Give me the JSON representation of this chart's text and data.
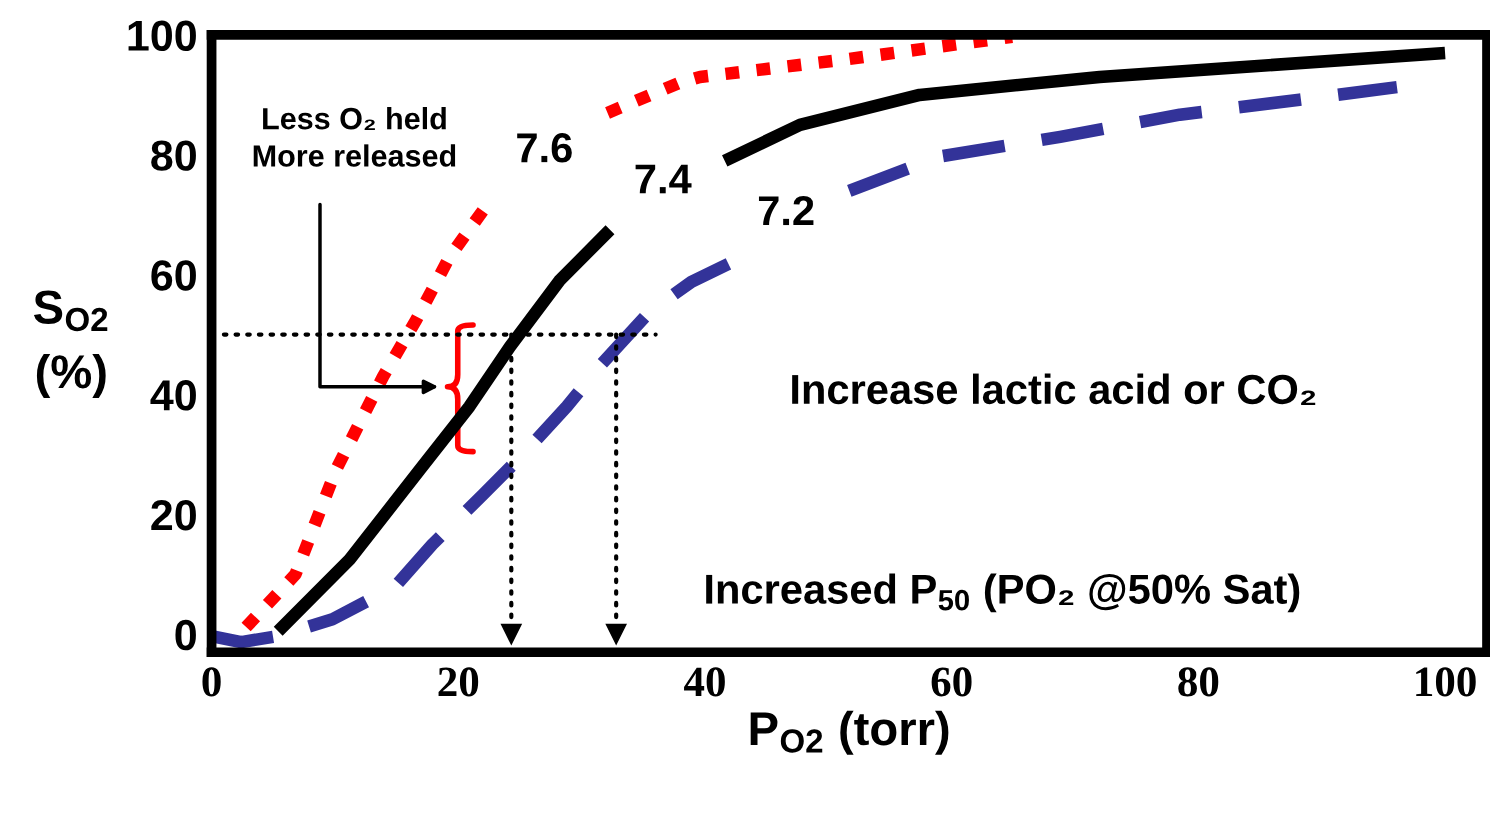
{
  "chart_data": {
    "type": "line",
    "xlabel": "P$_{O2}$ (torr)",
    "ylabel": "S$_{O2}$\n(%)",
    "xlim": [
      0,
      103.4
    ],
    "ylim": [
      -3,
      100
    ],
    "xticks": [
      0,
      20,
      40,
      60,
      80,
      100
    ],
    "yticks": [
      0,
      20,
      40,
      60,
      80,
      100
    ],
    "grid": false,
    "legend": false,
    "series": [
      {
        "name": "7.6",
        "color": "#ff0000",
        "line_style": "dotted",
        "x": [
          2.8,
          6.8,
          10.1,
          13.9,
          16.6,
          19.3,
          22.7,
          27,
          32.1,
          37.9,
          39.6,
          51.7,
          64.9
        ],
        "values": [
          1.2,
          10,
          27.5,
          43,
          52.5,
          63,
          72.7,
          null,
          87,
          92,
          93,
          96,
          99.7
        ]
      },
      {
        "name": "7.4",
        "color": "#000000",
        "line_style": "solid",
        "x": [
          5.4,
          11.2,
          16.9,
          20.9,
          24.2,
          28.2,
          32.3,
          37,
          41.6,
          47.7,
          57.4,
          72,
          100
        ],
        "values": [
          0.5,
          12.5,
          27.5,
          38,
          48,
          59,
          67.5,
          null,
          79,
          85,
          90,
          93,
          97
        ]
      },
      {
        "name": "7.2",
        "color": "#333399",
        "line_style": "dashed",
        "x": [
          0,
          2.4,
          5.4,
          9.8,
          14.9,
          17.9,
          22,
          25.1,
          28.8,
          31.5,
          35.5,
          38.9,
          42.3,
          47,
          51.7,
          59,
          68.8,
          78.5,
          88.2,
          96.1
        ],
        "values": [
          -0.3,
          -1.3,
          -0.3,
          2.5,
          8,
          15,
          23.3,
          29.7,
          38,
          44.8,
          53.8,
          58.8,
          62.2,
          null,
          74,
          79.7,
          83,
          86.7,
          89.2,
          91.3
        ]
      },
      {
        "color": "#000000",
        "line_style": "dotted",
        "x": [
          1,
          36
        ],
        "values": [
          50,
          50
        ]
      },
      {
        "color": "#000000",
        "line_style": "dotted",
        "marker": "triangle",
        "x": [
          24.3,
          24.3
        ],
        "values": [
          50,
          0
        ]
      },
      {
        "color": "#000000",
        "line_style": "dotted",
        "marker": "triangle",
        "x": [
          32.8,
          32.8
        ],
        "values": [
          50,
          0
        ]
      }
    ],
    "annotations": [
      "Less O₂ held\nMore released",
      "Increase lactic acid or CO₂",
      "Increased P$_{50}$ (PO₂ @50% Sat)"
    ]
  }
}
